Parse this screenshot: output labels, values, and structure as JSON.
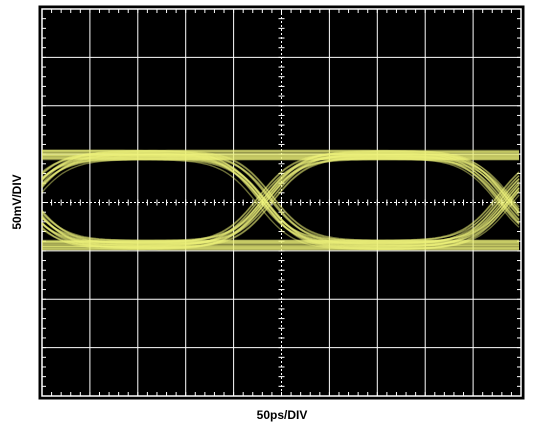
{
  "screen": {
    "y_label": "50mV/DIV",
    "x_label": "50ps/DIV"
  }
}
